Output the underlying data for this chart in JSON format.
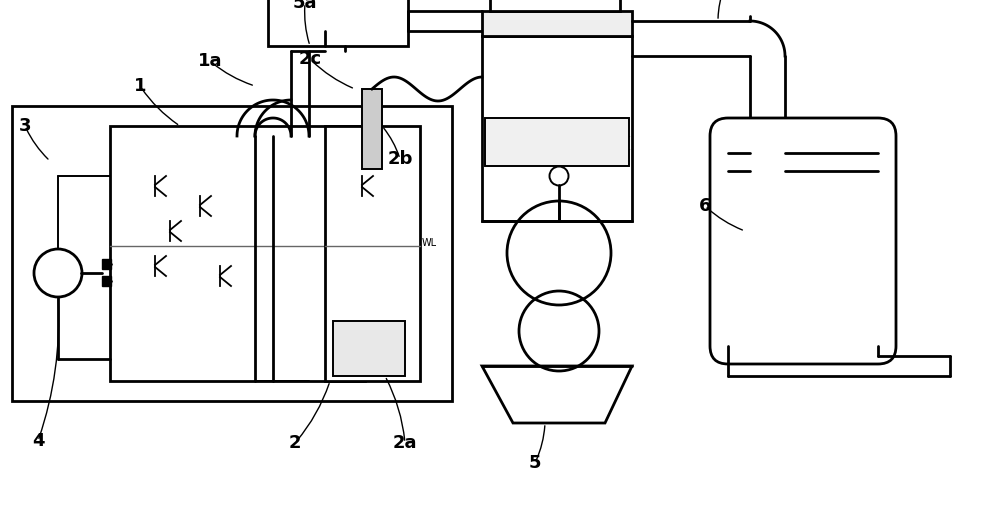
{
  "bg_color": "#ffffff",
  "lc": "#000000",
  "figsize": [
    10.0,
    5.31
  ],
  "dpi": 100,
  "xlim": [
    0,
    10
  ],
  "ylim": [
    0,
    5.31
  ]
}
